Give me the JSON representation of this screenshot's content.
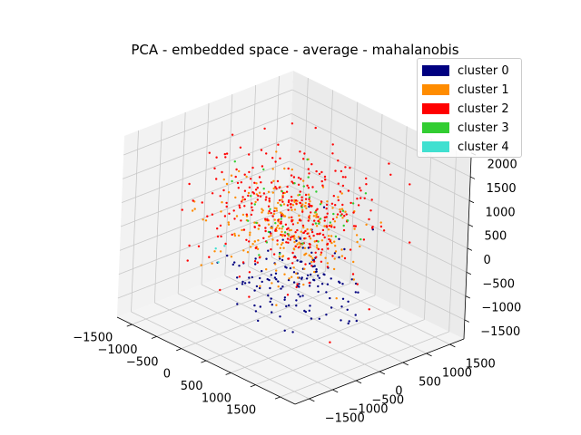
{
  "chart_data": {
    "type": "scatter",
    "title": "PCA - embedded space - average - mahalanobis",
    "xlabel": "",
    "ylabel": "",
    "zlabel": "",
    "xlim": [
      -1800,
      1800
    ],
    "ylim": [
      -1800,
      1800
    ],
    "zlim": [
      -1900,
      1900
    ],
    "x_ticks": [
      -1500,
      -1000,
      -500,
      0,
      500,
      1000,
      1500
    ],
    "y_ticks": [
      -1500,
      -1000,
      -500,
      0,
      500,
      1000,
      1500
    ],
    "z_ticks": [
      -1500,
      -1000,
      -500,
      0,
      500,
      1000,
      1500,
      2000
    ],
    "x_tick_labels": [
      "−1500",
      "−1000",
      "−500",
      "0",
      "500",
      "1000",
      "1500"
    ],
    "y_tick_labels": [
      "−1500",
      "−1000",
      "−500",
      "0",
      "500",
      "1000",
      "1500"
    ],
    "z_tick_labels": [
      "−1500",
      "−1000",
      "−500",
      "0",
      "500",
      "1000",
      "1500",
      "2000"
    ],
    "grid": true,
    "legend_position": "top-right",
    "series": [
      {
        "name": "cluster 0",
        "color": "#000080",
        "count": 150,
        "center": [
          600,
          -600,
          -300
        ],
        "spread": [
          500,
          500,
          450
        ]
      },
      {
        "name": "cluster 1",
        "color": "#ff8c00",
        "count": 240,
        "center": [
          -100,
          0,
          100
        ],
        "spread": [
          550,
          500,
          450
        ]
      },
      {
        "name": "cluster 2",
        "color": "#ff0000",
        "count": 330,
        "center": [
          -300,
          250,
          250
        ],
        "spread": [
          650,
          600,
          550
        ]
      },
      {
        "name": "cluster 3",
        "color": "#32cd32",
        "count": 45,
        "center": [
          -200,
          300,
          400
        ],
        "spread": [
          400,
          400,
          400
        ]
      },
      {
        "name": "cluster 4",
        "color": "#40e0d0",
        "count": 3,
        "center": [
          -1200,
          -200,
          -900
        ],
        "spread": [
          200,
          200,
          200
        ]
      }
    ]
  }
}
